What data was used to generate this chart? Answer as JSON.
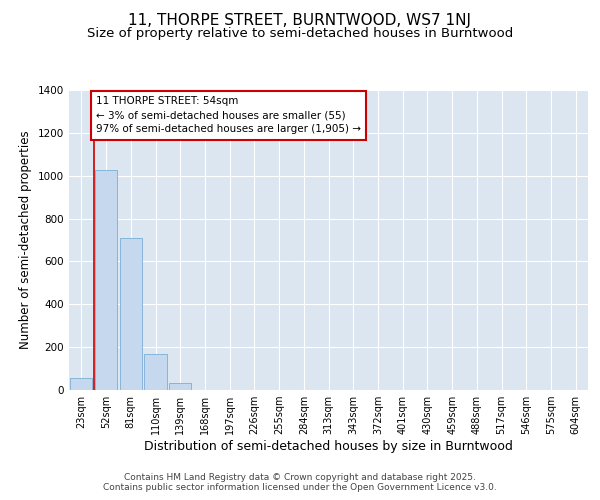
{
  "title": "11, THORPE STREET, BURNTWOOD, WS7 1NJ",
  "subtitle": "Size of property relative to semi-detached houses in Burntwood",
  "xlabel": "Distribution of semi-detached houses by size in Burntwood",
  "ylabel": "Number of semi-detached properties",
  "bins": [
    "23sqm",
    "52sqm",
    "81sqm",
    "110sqm",
    "139sqm",
    "168sqm",
    "197sqm",
    "226sqm",
    "255sqm",
    "284sqm",
    "313sqm",
    "343sqm",
    "372sqm",
    "401sqm",
    "430sqm",
    "459sqm",
    "488sqm",
    "517sqm",
    "546sqm",
    "575sqm",
    "604sqm"
  ],
  "values": [
    55,
    1025,
    710,
    170,
    35,
    0,
    0,
    0,
    0,
    0,
    0,
    0,
    0,
    0,
    0,
    0,
    0,
    0,
    0,
    0,
    0
  ],
  "bar_color": "#c5d8ed",
  "bar_edge_color": "#7bafd4",
  "vline_color": "#cc0000",
  "vline_x": 0.5,
  "annotation_text": "11 THORPE STREET: 54sqm\n← 3% of semi-detached houses are smaller (55)\n97% of semi-detached houses are larger (1,905) →",
  "annotation_box_edgecolor": "#cc0000",
  "ylim": [
    0,
    1400
  ],
  "yticks": [
    0,
    200,
    400,
    600,
    800,
    1000,
    1200,
    1400
  ],
  "background_color": "#dce6f1",
  "footer": "Contains HM Land Registry data © Crown copyright and database right 2025.\nContains public sector information licensed under the Open Government Licence v3.0.",
  "title_fontsize": 11,
  "subtitle_fontsize": 9.5,
  "xlabel_fontsize": 9,
  "ylabel_fontsize": 8.5,
  "tick_fontsize": 7,
  "footer_fontsize": 6.5
}
